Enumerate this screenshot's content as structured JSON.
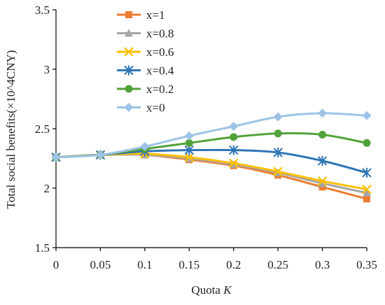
{
  "chart_data": {
    "type": "line",
    "title": "",
    "xlabel": "Quota",
    "xlabel_var": "K",
    "ylabel": "Total social benefits(×10^4CNY)",
    "x": [
      0,
      0.05,
      0.1,
      0.15,
      0.2,
      0.25,
      0.3,
      0.35
    ],
    "x_tick_labels": [
      "0",
      "0.05",
      "0.1",
      "0.15",
      "0.2",
      "0.25",
      "0.3",
      "0.35"
    ],
    "y_ticks": [
      1.5,
      2,
      2.5,
      3,
      3.5
    ],
    "y_tick_labels": [
      "1.5",
      "2",
      "2.5",
      "3",
      "3.5"
    ],
    "xlim": [
      0,
      0.35
    ],
    "ylim": [
      1.5,
      3.5
    ],
    "grid": false,
    "legend_position": "top-left",
    "series": [
      {
        "name": "x=1",
        "color": "#ED7D31",
        "marker": "square",
        "values": [
          2.26,
          2.28,
          2.28,
          2.24,
          2.19,
          2.11,
          2.01,
          1.91
        ]
      },
      {
        "name": "x=0.8",
        "color": "#A5A5A5",
        "marker": "triangle",
        "values": [
          2.26,
          2.28,
          2.28,
          2.25,
          2.2,
          2.13,
          2.04,
          1.96
        ]
      },
      {
        "name": "x=0.6",
        "color": "#FFC000",
        "marker": "x",
        "values": [
          2.26,
          2.28,
          2.29,
          2.26,
          2.21,
          2.14,
          2.06,
          1.99
        ]
      },
      {
        "name": "x=0.4",
        "color": "#2E75B6",
        "marker": "star",
        "values": [
          2.26,
          2.28,
          2.31,
          2.32,
          2.32,
          2.3,
          2.23,
          2.13
        ]
      },
      {
        "name": "x=0.2",
        "color": "#52A23A",
        "marker": "circle",
        "values": [
          2.26,
          2.28,
          2.33,
          2.38,
          2.43,
          2.46,
          2.45,
          2.38
        ]
      },
      {
        "name": "x=0",
        "color": "#9DC3E6",
        "marker": "diamond",
        "values": [
          2.26,
          2.28,
          2.35,
          2.44,
          2.52,
          2.6,
          2.63,
          2.61
        ]
      }
    ]
  }
}
